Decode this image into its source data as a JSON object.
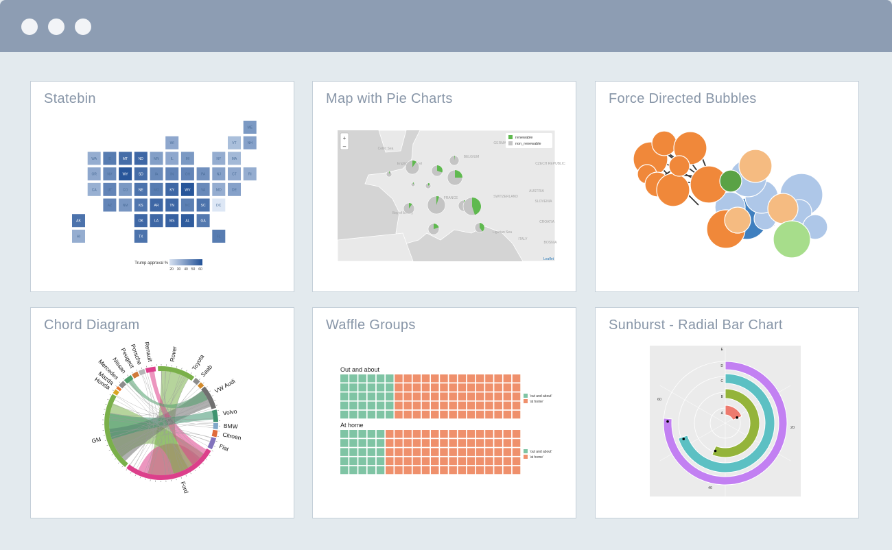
{
  "window": {
    "controls": [
      "close",
      "minimize",
      "maximize"
    ]
  },
  "cards": [
    {
      "title": "Statebin"
    },
    {
      "title": "Map with Pie Charts"
    },
    {
      "title": "Force Directed Bubbles"
    },
    {
      "title": "Chord Diagram"
    },
    {
      "title": "Waffle Groups"
    },
    {
      "title": "Sunburst - Radial Bar Chart"
    }
  ],
  "statebin": {
    "states": [
      {
        "code": "ME",
        "value": 35
      },
      {
        "code": "WI",
        "value": 30
      },
      {
        "code": "VT",
        "value": 22
      },
      {
        "code": "NH",
        "value": 32
      },
      {
        "code": "WA",
        "value": 28
      },
      {
        "code": "ID",
        "value": 45
      },
      {
        "code": "MT",
        "value": 50
      },
      {
        "code": "ND",
        "value": 52
      },
      {
        "code": "MN",
        "value": 33
      },
      {
        "code": "IL",
        "value": 30
      },
      {
        "code": "MI",
        "value": 35
      },
      {
        "code": "NY",
        "value": 28
      },
      {
        "code": "MA",
        "value": 24
      },
      {
        "code": "OR",
        "value": 30
      },
      {
        "code": "NV",
        "value": 40
      },
      {
        "code": "WY",
        "value": 58
      },
      {
        "code": "SD",
        "value": 50
      },
      {
        "code": "IA",
        "value": 40
      },
      {
        "code": "IN",
        "value": 42
      },
      {
        "code": "OH",
        "value": 42
      },
      {
        "code": "PA",
        "value": 38
      },
      {
        "code": "NJ",
        "value": 32
      },
      {
        "code": "CT",
        "value": 30
      },
      {
        "code": "RI",
        "value": 28
      },
      {
        "code": "CA",
        "value": 27
      },
      {
        "code": "UT",
        "value": 42
      },
      {
        "code": "CO",
        "value": 35
      },
      {
        "code": "NE",
        "value": 48
      },
      {
        "code": "MO",
        "value": 45
      },
      {
        "code": "KY",
        "value": 52
      },
      {
        "code": "WV",
        "value": 58
      },
      {
        "code": "VA",
        "value": 40
      },
      {
        "code": "MD",
        "value": 28
      },
      {
        "code": "DE",
        "value": 32
      },
      {
        "code": "AZ",
        "value": 42
      },
      {
        "code": "NM",
        "value": 36
      },
      {
        "code": "KS",
        "value": 47
      },
      {
        "code": "AR",
        "value": 52
      },
      {
        "code": "TN",
        "value": 52
      },
      {
        "code": "NC",
        "value": 44
      },
      {
        "code": "SC",
        "value": 48
      },
      {
        "code": "DC",
        "value": 8
      },
      {
        "code": "AK",
        "value": 48
      },
      {
        "code": "OK",
        "value": 52
      },
      {
        "code": "LA",
        "value": 52
      },
      {
        "code": "MS",
        "value": 54
      },
      {
        "code": "AL",
        "value": 56
      },
      {
        "code": "GA",
        "value": 46
      },
      {
        "code": "HI",
        "value": 28
      },
      {
        "code": "TX",
        "value": 48
      },
      {
        "code": "FL",
        "value": 45
      }
    ],
    "legend_label": "Trump approval %",
    "legend_ticks": [
      "20",
      "30",
      "40",
      "50",
      "60"
    ]
  },
  "map": {
    "zoom_in": "+",
    "zoom_out": "–",
    "legend": [
      {
        "label": "renewable",
        "color": "#5fb94f"
      },
      {
        "label": "non_renewable",
        "color": "#c4c4c4"
      }
    ],
    "place_labels": [
      "Celtic Sea",
      "English Channel",
      "BELGIUM",
      "GERMANY",
      "CZECH REPUBLIC",
      "FRANCE",
      "SWITZERLAND",
      "AUSTRIA",
      "SLOVENIA",
      "Bay of Biscay",
      "Ligurian Sea",
      "ITALY",
      "CROATIA",
      "BOSNIA"
    ],
    "attribution": "Leaflet",
    "pies": [
      {
        "renewable": 0.1
      },
      {
        "renewable": 0.05
      },
      {
        "renewable": 0.08
      },
      {
        "renewable": 0.12
      },
      {
        "renewable": 0.3
      },
      {
        "renewable": 0.02
      },
      {
        "renewable": 0.25
      },
      {
        "renewable": 0.05
      },
      {
        "renewable": 0.15
      },
      {
        "renewable": 0.1
      },
      {
        "renewable": 0.45
      },
      {
        "renewable": 0.2
      },
      {
        "renewable": 0.4
      }
    ]
  },
  "chord": {
    "labels": [
      "Rover",
      "Toyota",
      "Saab",
      "VW Audi",
      "Volvo",
      "BMW",
      "Citroen",
      "Fiat",
      "Ford",
      "GM",
      "Honda",
      "Mazda",
      "Mercedes",
      "Nissan",
      "Peugeot",
      "Porsche",
      "Renault"
    ]
  },
  "waffle": {
    "groups": [
      {
        "title": "Out and about",
        "out": 6,
        "home": 14
      },
      {
        "title": "At home",
        "out": 5,
        "home": 15
      }
    ],
    "legend": [
      {
        "label": "'out and about'",
        "color": "#7fc4a4"
      },
      {
        "label": "'at home'",
        "color": "#ef906c"
      }
    ]
  },
  "sunburst": {
    "ring_labels": [
      "E",
      "D",
      "C",
      "B",
      "A"
    ],
    "axis_ticks": [
      "20",
      "40",
      "60"
    ],
    "bars": [
      {
        "label": "D",
        "value": 61,
        "color": "#c280f2"
      },
      {
        "label": "C",
        "value": 56,
        "color": "#5cc0c3"
      },
      {
        "label": "B",
        "value": 45,
        "color": "#94b43a"
      },
      {
        "label": "A",
        "value": 15,
        "color": "#ed7a6e"
      }
    ]
  },
  "colors": {
    "titlebar": "#8d9db3",
    "background": "#e3eaee",
    "card_title": "#8896a8"
  }
}
